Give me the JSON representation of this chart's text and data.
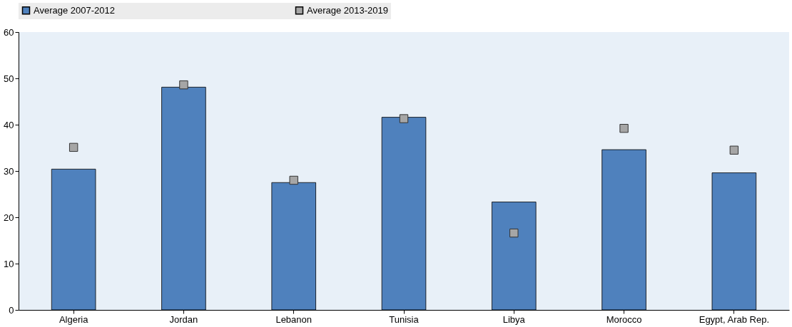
{
  "chart_data": {
    "type": "bar",
    "categories": [
      "Algeria",
      "Jordan",
      "Lebanon",
      "Tunisia",
      "Libya",
      "Morocco",
      "Egypt, Arab Rep."
    ],
    "series": [
      {
        "name": "Average 2007-2012",
        "color": "#4f81bd",
        "values": [
          30.4,
          48.1,
          27.5,
          41.6,
          23.3,
          34.6,
          29.6
        ]
      },
      {
        "name": "Average 2013-2019",
        "type": "scatter",
        "color": "#a6a6a6",
        "values": [
          35.1,
          48.6,
          28.0,
          41.3,
          16.6,
          39.2,
          34.5
        ]
      }
    ],
    "ylim": [
      0,
      60
    ],
    "yticks": [
      0,
      10,
      20,
      30,
      40,
      50,
      60
    ],
    "grid": false,
    "legend": "top",
    "marker": "square"
  }
}
